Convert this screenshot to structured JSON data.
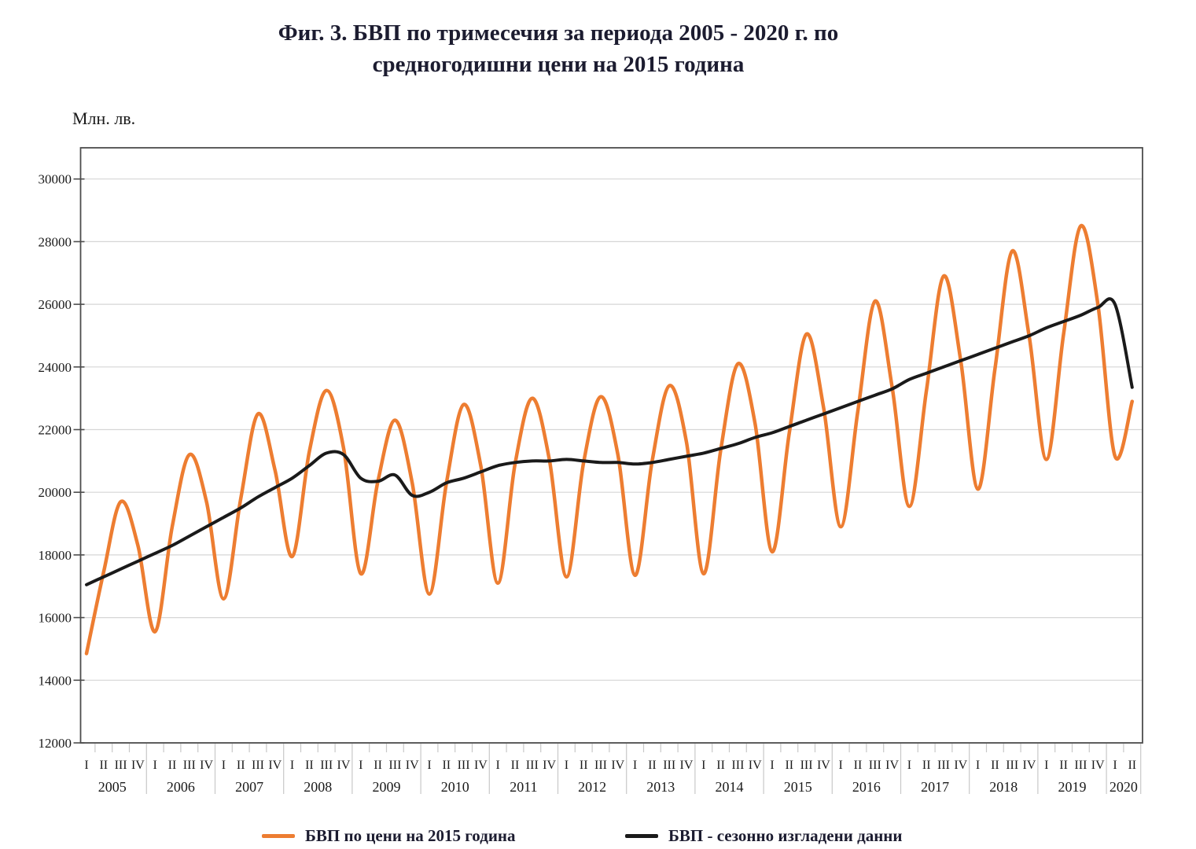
{
  "title": {
    "line1": "Фиг. 3. БВП по тримесечия за периода 2005 - 2020 г. по",
    "line2": "средногодишни цени на 2015 година"
  },
  "y_axis": {
    "unit": "Млн. лв.",
    "ticks": [
      12000,
      14000,
      16000,
      18000,
      20000,
      22000,
      24000,
      26000,
      28000,
      30000
    ]
  },
  "x_axis": {
    "years": [
      {
        "year": "2005",
        "quarters": [
          "I",
          "II",
          "III",
          "IV"
        ]
      },
      {
        "year": "2006",
        "quarters": [
          "I",
          "II",
          "III",
          "IV"
        ]
      },
      {
        "year": "2007",
        "quarters": [
          "I",
          "II",
          "III",
          "IV"
        ]
      },
      {
        "year": "2008",
        "quarters": [
          "I",
          "II",
          "III",
          "IV"
        ]
      },
      {
        "year": "2009",
        "quarters": [
          "I",
          "II",
          "III",
          "IV"
        ]
      },
      {
        "year": "2010",
        "quarters": [
          "I",
          "II",
          "III",
          "IV"
        ]
      },
      {
        "year": "2011",
        "quarters": [
          "I",
          "II",
          "III",
          "IV"
        ]
      },
      {
        "year": "2012",
        "quarters": [
          "I",
          "II",
          "III",
          "IV"
        ]
      },
      {
        "year": "2013",
        "quarters": [
          "I",
          "II",
          "III",
          "IV"
        ]
      },
      {
        "year": "2014",
        "quarters": [
          "I",
          "II",
          "III",
          "IV"
        ]
      },
      {
        "year": "2015",
        "quarters": [
          "I",
          "II",
          "III",
          "IV"
        ]
      },
      {
        "year": "2016",
        "quarters": [
          "I",
          "II",
          "III",
          "IV"
        ]
      },
      {
        "year": "2017",
        "quarters": [
          "I",
          "II",
          "III",
          "IV"
        ]
      },
      {
        "year": "2018",
        "quarters": [
          "I",
          "II",
          "III",
          "IV"
        ]
      },
      {
        "year": "2019",
        "quarters": [
          "I",
          "II",
          "III",
          "IV"
        ]
      },
      {
        "year": "2020",
        "quarters": [
          "I",
          "II"
        ]
      }
    ]
  },
  "legend": [
    {
      "label": "БВП по цени на 2015 година",
      "color": "#ED7D31"
    },
    {
      "label": "БВП - сезонно изгладени данни",
      "color": "#1A1A1A"
    }
  ],
  "colors": {
    "gridline": "#D6D6D6",
    "frame": "#4d4d4d",
    "tick": "#4d4d4d",
    "minor_tick": "#C8C8C8",
    "axis_text": "#1a1a1a"
  },
  "chart_data": {
    "type": "line",
    "title": "Фиг. 3. БВП по тримесечия за периода 2005 - 2020 г. по средногодишни цени на 2015 година",
    "ylabel": "Млн. лв.",
    "xlabel": "",
    "ylim": [
      12000,
      31000
    ],
    "grid": true,
    "legend_position": "bottom",
    "x_quarters": "quarterly from 2005 Q1 to 2020 Q2",
    "series": [
      {
        "name": "БВП по цени на 2015 година",
        "color": "#ED7D31",
        "width": 4.5,
        "values": [
          14850,
          17450,
          19700,
          18300,
          15550,
          18900,
          21200,
          19700,
          16600,
          19800,
          22500,
          20700,
          17950,
          21300,
          23250,
          21400,
          17400,
          20350,
          22300,
          20300,
          16750,
          20300,
          22800,
          20850,
          17100,
          20900,
          23000,
          21050,
          17300,
          20950,
          23050,
          21200,
          17350,
          21000,
          23400,
          21600,
          17400,
          21350,
          24100,
          22200,
          18100,
          21900,
          25050,
          22700,
          18900,
          22600,
          26100,
          23350,
          19550,
          23250,
          26900,
          24200,
          20100,
          23950,
          27700,
          24950,
          21050,
          25050,
          28500,
          26000,
          21150,
          22900
        ]
      },
      {
        "name": "БВП - сезонно изгладени данни",
        "color": "#1A1A1A",
        "width": 4,
        "values": [
          17050,
          17300,
          17550,
          17800,
          18050,
          18300,
          18600,
          18900,
          19200,
          19500,
          19850,
          20150,
          20450,
          20850,
          21250,
          21200,
          20450,
          20350,
          20550,
          19900,
          20000,
          20300,
          20450,
          20650,
          20850,
          20950,
          21000,
          21000,
          21050,
          21000,
          20950,
          20950,
          20900,
          20950,
          21050,
          21150,
          21250,
          21400,
          21550,
          21750,
          21900,
          22100,
          22300,
          22500,
          22700,
          22900,
          23100,
          23300,
          23600,
          23800,
          24000,
          24200,
          24400,
          24600,
          24800,
          25000,
          25250,
          25450,
          25650,
          25900,
          26000,
          23350
        ]
      }
    ]
  }
}
